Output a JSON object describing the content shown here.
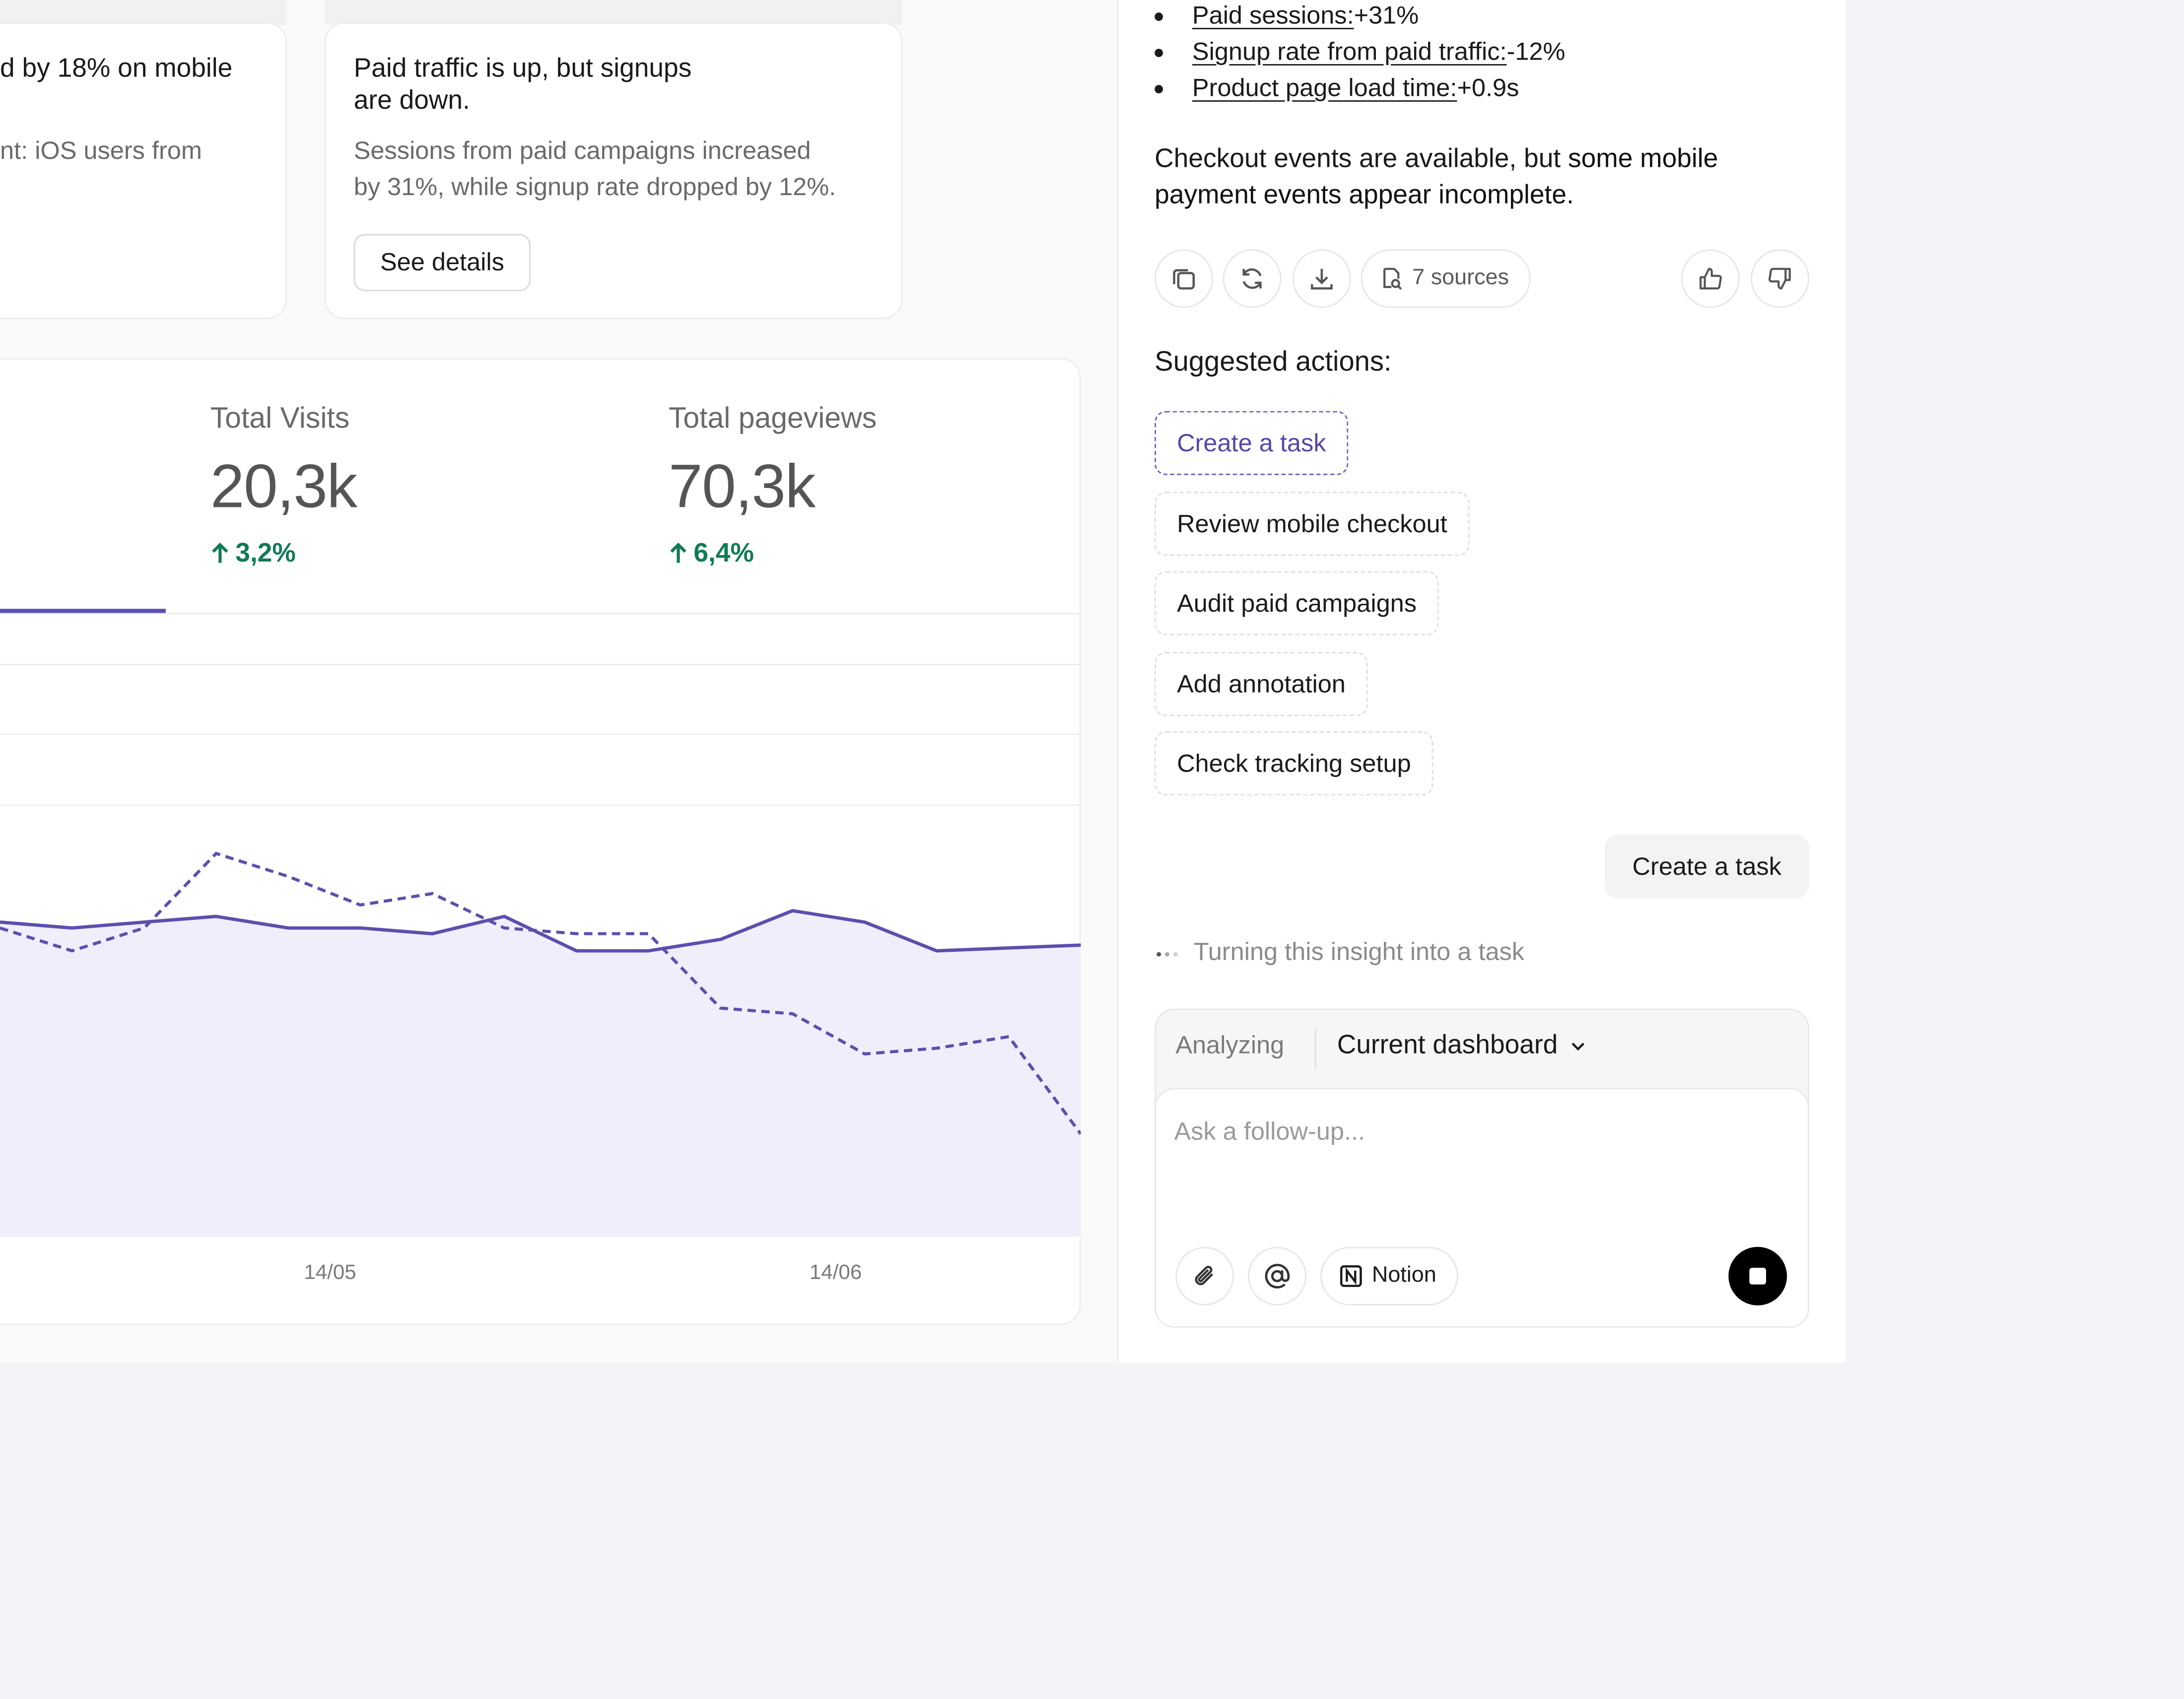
{
  "insights": [
    {
      "title": "d by 18% on mobile",
      "text": "nt: iOS users from"
    },
    {
      "title_line1": "Paid traffic is up, but signups",
      "title_line2": "are down.",
      "text_line1": "Sessions from paid campaigns increased",
      "text_line2": "by 31%, while signup rate dropped by 12%.",
      "button": "See details"
    }
  ],
  "metrics": [
    {
      "label": "Total Visits",
      "value": "20,3k",
      "change": "3,2%"
    },
    {
      "label": "Total pageviews",
      "value": "70,3k",
      "change": "6,4%"
    }
  ],
  "colors": {
    "accent": "#5b4fae",
    "area_fill": "#f1eefb",
    "positive": "#107a57"
  },
  "chart_data": {
    "type": "line",
    "x_tick_labels": [
      "14/05",
      "14/06"
    ],
    "series": [
      {
        "style": "solid",
        "values": [
          0.55,
          0.54,
          0.55,
          0.56,
          0.54,
          0.54,
          0.53,
          0.56,
          0.5,
          0.5,
          0.52,
          0.57,
          0.55,
          0.5,
          0.505,
          0.51
        ]
      },
      {
        "style": "dashed",
        "values": [
          0.54,
          0.5,
          0.54,
          0.67,
          0.63,
          0.58,
          0.6,
          0.54,
          0.53,
          0.53,
          0.4,
          0.39,
          0.32,
          0.33,
          0.35,
          0.18
        ]
      }
    ]
  },
  "panel": {
    "bullets": [
      {
        "key": "Paid sessions:",
        "value": " +31%"
      },
      {
        "key": "Signup rate from paid traffic:",
        "value": " -12%"
      },
      {
        "key": "Product page load time:",
        "value": " +0.9s"
      }
    ],
    "para_plain": "Checkout events are available, but ",
    "para_bold": "some mobile payment events appear incomplete.",
    "sources": "7 sources",
    "actions_heading": "Suggested actions:",
    "actions": [
      "Create a task",
      "Review mobile checkout",
      "Audit paid campaigns",
      "Add annotation",
      "Check tracking setup"
    ],
    "user_message": "Create a task",
    "status": "Turning this insight into a task",
    "composer": {
      "analyzing": "Analyzing",
      "context": "Current dashboard",
      "placeholder": "Ask a follow-up...",
      "notion": "Notion"
    },
    "icons": [
      "copy-icon",
      "refresh-icon",
      "download-icon",
      "thumbs-up-icon",
      "thumbs-down-icon",
      "paperclip-icon",
      "at-sign-icon",
      "stop-icon"
    ]
  }
}
